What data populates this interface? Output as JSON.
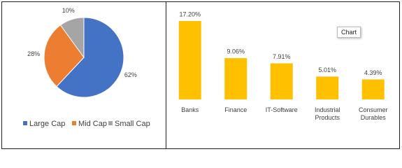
{
  "chart_data": [
    {
      "type": "pie",
      "categories": [
        "Large Cap",
        "Mid Cap",
        "Small Cap"
      ],
      "values": [
        62,
        28,
        10
      ],
      "value_labels": [
        "62%",
        "28%",
        "10%"
      ],
      "colors": [
        "#4472c4",
        "#ed7d31",
        "#a5a5a5"
      ],
      "legend": "bottom"
    },
    {
      "type": "bar",
      "categories": [
        "Banks",
        "Finance",
        "IT-Software",
        "Industrial Products",
        "Consumer Durables"
      ],
      "values": [
        17.2,
        9.06,
        7.91,
        5.01,
        4.39
      ],
      "value_labels": [
        "17.20%",
        "9.06%",
        "7.91%",
        "5.01%",
        "4.39%"
      ],
      "color": "#ffc000",
      "tooltip": "Chart"
    }
  ]
}
